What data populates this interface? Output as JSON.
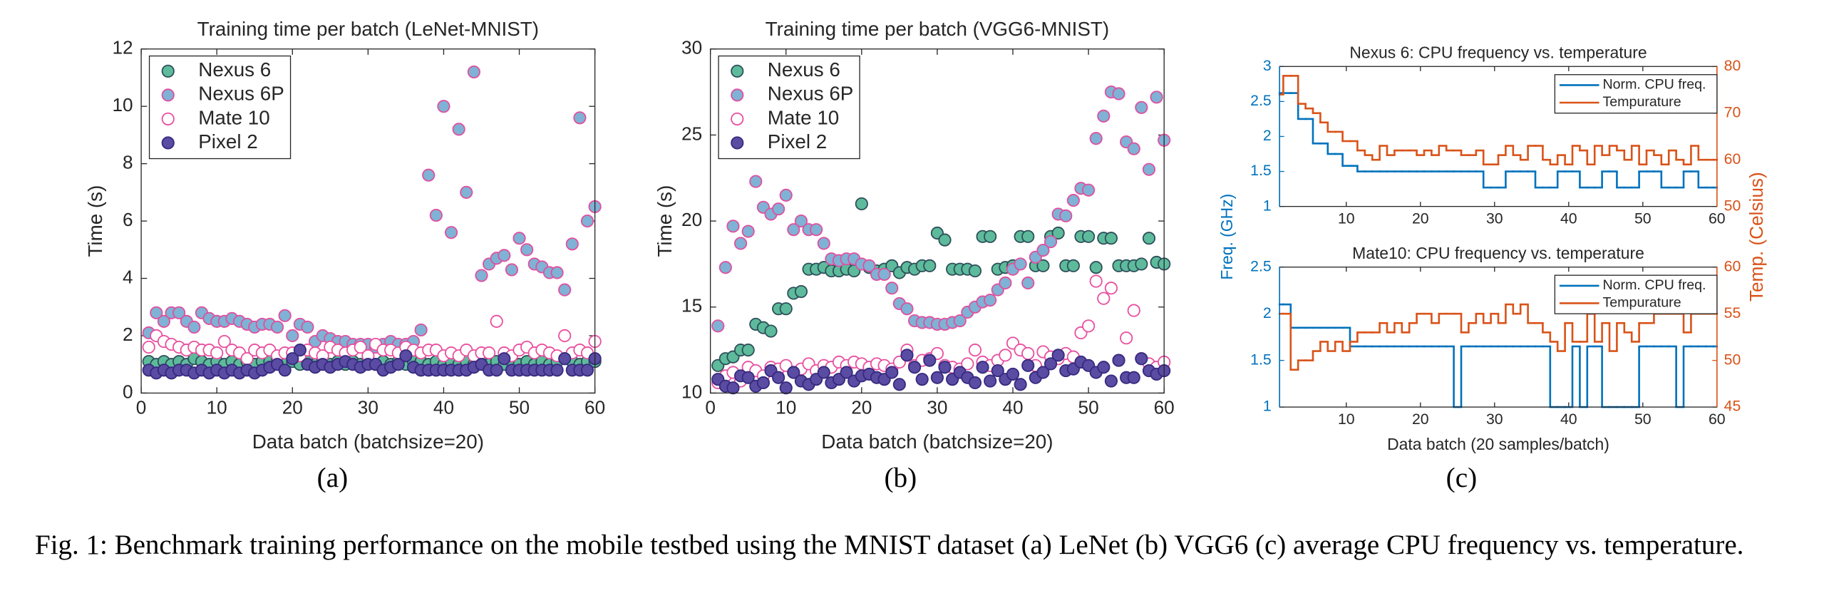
{
  "caption": "Fig. 1: Benchmark training performance on the mobile testbed using the MNIST dataset (a) LeNet (b) VGG6 (c) average CPU frequency vs. temperature.",
  "chart_data": [
    {
      "type": "scatter",
      "title": "Training time per batch (LeNet-MNIST)",
      "xlabel": "Data batch (batchsize=20)",
      "ylabel": "Time (s)",
      "panel": "(a)",
      "legend": "upper left",
      "xlim": [
        0,
        60
      ],
      "xticks": [
        0,
        10,
        20,
        30,
        40,
        50,
        60
      ],
      "ylim": [
        0,
        12
      ],
      "yticks": [
        0,
        2,
        4,
        6,
        8,
        10,
        12
      ],
      "x": [
        1,
        2,
        3,
        4,
        5,
        6,
        7,
        8,
        9,
        10,
        11,
        12,
        13,
        14,
        15,
        16,
        17,
        18,
        19,
        20,
        21,
        22,
        23,
        24,
        25,
        26,
        27,
        28,
        29,
        30,
        31,
        32,
        33,
        34,
        35,
        36,
        37,
        38,
        39,
        40,
        41,
        42,
        43,
        44,
        45,
        46,
        47,
        48,
        49,
        50,
        51,
        52,
        53,
        54,
        55,
        56,
        57,
        58,
        59,
        60
      ],
      "series": [
        {
          "name": "Nexus 6",
          "color": "#5dbb9c",
          "edgecolor": "#2f4f5a",
          "values": [
            1.1,
            1.0,
            1.1,
            1.0,
            1.1,
            1.0,
            1.2,
            1.1,
            1.0,
            1.1,
            1.0,
            1.1,
            1.0,
            1.1,
            1.0,
            1.1,
            1.1,
            1.2,
            1.0,
            1.1,
            1.0,
            1.1,
            1.0,
            1.1,
            1.0,
            1.1,
            1.0,
            1.1,
            1.0,
            1.1,
            1.0,
            1.1,
            1.0,
            1.1,
            1.0,
            1.1,
            1.1,
            1.0,
            1.1,
            1.0,
            1.1,
            1.0,
            1.1,
            1.0,
            1.1,
            1.0,
            1.1,
            1.0,
            1.1,
            1.0,
            1.1,
            1.0,
            1.1,
            1.0,
            1.1,
            1.2,
            1.1,
            1.0,
            1.1,
            1.1
          ]
        },
        {
          "name": "Nexus 6P",
          "color": "#7fb2d4",
          "edgecolor": "#e0509f",
          "values": [
            2.1,
            2.8,
            2.5,
            2.8,
            2.8,
            2.5,
            2.3,
            2.8,
            2.6,
            2.5,
            2.5,
            2.6,
            2.5,
            2.4,
            2.3,
            2.4,
            2.4,
            2.3,
            2.7,
            2.0,
            2.4,
            2.3,
            1.8,
            2.0,
            1.9,
            1.8,
            1.8,
            1.7,
            1.7,
            1.7,
            1.6,
            1.7,
            1.8,
            1.7,
            1.7,
            1.8,
            2.2,
            7.6,
            6.2,
            10.0,
            5.6,
            9.2,
            7.0,
            11.2,
            4.1,
            4.5,
            4.7,
            4.8,
            4.3,
            5.4,
            5.0,
            4.5,
            4.4,
            4.2,
            4.2,
            3.6,
            5.2,
            9.6,
            6.0,
            6.5
          ]
        },
        {
          "name": "Mate 10",
          "color": "#ffffff",
          "edgecolor": "#e94fa0",
          "values": [
            1.6,
            2.0,
            1.8,
            1.7,
            1.6,
            1.5,
            1.6,
            1.5,
            1.5,
            1.4,
            1.8,
            1.5,
            1.4,
            1.2,
            1.5,
            1.4,
            1.5,
            1.3,
            1.4,
            1.4,
            1.3,
            1.5,
            1.4,
            1.3,
            1.6,
            1.5,
            1.4,
            1.5,
            1.6,
            1.3,
            1.7,
            1.5,
            1.5,
            1.4,
            1.6,
            1.5,
            1.4,
            1.5,
            1.5,
            1.3,
            1.4,
            1.3,
            1.5,
            1.3,
            1.4,
            1.4,
            2.5,
            1.4,
            1.3,
            1.5,
            1.6,
            1.4,
            1.5,
            1.4,
            1.3,
            2.0,
            1.4,
            1.5,
            1.4,
            1.8
          ]
        },
        {
          "name": "Pixel 2",
          "color": "#5a4ba3",
          "edgecolor": "#362a7e",
          "values": [
            0.8,
            0.7,
            0.8,
            0.7,
            0.8,
            0.8,
            0.7,
            0.8,
            0.7,
            0.8,
            0.7,
            0.8,
            0.7,
            0.8,
            0.7,
            0.8,
            0.9,
            1.0,
            0.8,
            1.2,
            1.5,
            1.0,
            0.9,
            1.0,
            0.9,
            1.0,
            1.1,
            1.0,
            0.9,
            1.0,
            1.0,
            0.8,
            0.9,
            1.0,
            1.3,
            0.9,
            0.8,
            0.8,
            0.8,
            0.8,
            0.8,
            0.8,
            0.8,
            0.9,
            1.0,
            0.8,
            0.8,
            1.2,
            0.8,
            0.8,
            0.8,
            0.8,
            0.8,
            0.8,
            0.8,
            1.2,
            0.8,
            0.8,
            0.8,
            1.2
          ]
        }
      ]
    },
    {
      "type": "scatter",
      "title": "Training time per batch (VGG6-MNIST)",
      "xlabel": "Data batch (batchsize=20)",
      "ylabel": "Time (s)",
      "panel": "(b)",
      "legend": "upper left",
      "xlim": [
        0,
        60
      ],
      "xticks": [
        0,
        10,
        20,
        30,
        40,
        50,
        60
      ],
      "ylim": [
        10,
        30
      ],
      "yticks": [
        10,
        15,
        20,
        25,
        30
      ],
      "x": [
        1,
        2,
        3,
        4,
        5,
        6,
        7,
        8,
        9,
        10,
        11,
        12,
        13,
        14,
        15,
        16,
        17,
        18,
        19,
        20,
        21,
        22,
        23,
        24,
        25,
        26,
        27,
        28,
        29,
        30,
        31,
        32,
        33,
        34,
        35,
        36,
        37,
        38,
        39,
        40,
        41,
        42,
        43,
        44,
        45,
        46,
        47,
        48,
        49,
        50,
        51,
        52,
        53,
        54,
        55,
        56,
        57,
        58,
        59,
        60
      ],
      "series": [
        {
          "name": "Nexus 6",
          "color": "#5dbb9c",
          "edgecolor": "#2f4f5a",
          "values": [
            11.6,
            12.0,
            12.1,
            12.5,
            12.5,
            14.0,
            13.8,
            13.6,
            14.9,
            14.9,
            15.8,
            15.9,
            17.2,
            17.2,
            17.3,
            17.1,
            17.1,
            17.2,
            17.1,
            21.0,
            17.3,
            17.1,
            17.2,
            17.4,
            17.0,
            17.3,
            17.2,
            17.4,
            17.4,
            19.3,
            18.9,
            17.2,
            17.2,
            17.2,
            17.1,
            19.1,
            19.1,
            17.2,
            17.3,
            17.4,
            19.1,
            19.1,
            17.4,
            17.4,
            19.1,
            19.3,
            17.4,
            17.4,
            19.1,
            19.1,
            17.3,
            19.0,
            19.0,
            17.4,
            17.4,
            17.4,
            17.5,
            19.0,
            17.6,
            17.5
          ]
        },
        {
          "name": "Nexus 6P",
          "color": "#7fb2d4",
          "edgecolor": "#e0509f",
          "values": [
            13.9,
            17.3,
            19.7,
            18.7,
            19.4,
            22.3,
            20.8,
            20.4,
            20.7,
            21.5,
            19.5,
            20.0,
            19.5,
            19.5,
            18.7,
            17.8,
            17.7,
            17.8,
            17.8,
            17.5,
            17.4,
            16.9,
            16.9,
            16.1,
            15.2,
            14.9,
            14.2,
            14.1,
            14.1,
            14.0,
            14.0,
            14.1,
            14.2,
            14.7,
            15.0,
            15.3,
            15.4,
            16.0,
            16.4,
            17.2,
            17.5,
            16.4,
            17.9,
            18.3,
            18.8,
            20.4,
            20.3,
            21.2,
            21.9,
            21.8,
            24.8,
            26.1,
            27.5,
            27.4,
            24.6,
            24.2,
            26.6,
            23.0,
            27.2,
            24.7
          ]
        },
        {
          "name": "Mate 10",
          "color": "#ffffff",
          "edgecolor": "#e94fa0",
          "values": [
            10.6,
            11.0,
            11.2,
            10.7,
            11.5,
            11.3,
            11.0,
            11.5,
            11.4,
            11.6,
            11.2,
            11.4,
            11.7,
            11.3,
            11.6,
            11.5,
            11.8,
            11.6,
            11.8,
            11.7,
            11.5,
            11.7,
            11.6,
            11.4,
            11.8,
            12.5,
            11.6,
            11.9,
            12.0,
            12.3,
            11.6,
            11.5,
            11.4,
            11.7,
            12.5,
            11.8,
            11.6,
            11.9,
            12.2,
            12.9,
            12.5,
            12.3,
            11.6,
            12.4,
            12.1,
            12.0,
            12.3,
            12.1,
            13.5,
            13.9,
            16.5,
            15.5,
            16.1,
            11.9,
            13.2,
            14.8,
            12.0,
            11.7,
            11.5,
            11.8
          ]
        },
        {
          "name": "Pixel 2",
          "color": "#5a4ba3",
          "edgecolor": "#362a7e",
          "values": [
            10.8,
            10.4,
            10.3,
            11.0,
            10.9,
            10.4,
            10.6,
            11.3,
            10.9,
            10.3,
            11.2,
            10.7,
            10.5,
            10.8,
            11.2,
            10.6,
            10.8,
            11.2,
            10.7,
            11.0,
            11.1,
            10.9,
            10.8,
            11.2,
            10.5,
            12.2,
            11.5,
            10.8,
            11.9,
            10.9,
            11.5,
            10.8,
            11.2,
            10.9,
            10.6,
            11.5,
            10.7,
            11.3,
            10.8,
            11.1,
            10.5,
            11.6,
            10.9,
            11.2,
            11.7,
            12.2,
            11.3,
            11.4,
            11.8,
            11.6,
            11.2,
            11.5,
            10.7,
            11.9,
            10.9,
            10.9,
            12.0,
            11.3,
            11.1,
            11.3
          ]
        }
      ]
    },
    {
      "type": "step",
      "title": "Nexus 6: CPU frequency vs. temperature",
      "ylabel": "Freq. (GHz)",
      "y2label": "Temp. (Celsius)",
      "legend": "upper right",
      "xlim": [
        1,
        60
      ],
      "xticks": [
        10,
        20,
        30,
        40,
        50,
        60
      ],
      "ylim": [
        1,
        3
      ],
      "yticks": [
        1,
        1.5,
        2,
        2.5,
        3
      ],
      "y2lim": [
        50,
        80
      ],
      "y2ticks": [
        50,
        60,
        70,
        80
      ],
      "x": [
        1,
        2,
        3,
        4,
        5,
        6,
        7,
        8,
        9,
        10,
        11,
        12,
        13,
        14,
        15,
        16,
        17,
        18,
        19,
        20,
        21,
        22,
        23,
        24,
        25,
        26,
        27,
        28,
        29,
        30,
        31,
        32,
        33,
        34,
        35,
        36,
        37,
        38,
        39,
        40,
        41,
        42,
        43,
        44,
        45,
        46,
        47,
        48,
        49,
        50,
        51,
        52,
        53,
        54,
        55,
        56,
        57,
        58,
        59,
        60
      ],
      "series": [
        {
          "name": "Norm. CPU freq.",
          "color": "#0072bd",
          "values": [
            2.62,
            2.62,
            2.62,
            2.25,
            2.25,
            1.9,
            1.9,
            1.75,
            1.75,
            1.58,
            1.58,
            1.5,
            1.5,
            1.5,
            1.5,
            1.5,
            1.5,
            1.5,
            1.5,
            1.5,
            1.5,
            1.5,
            1.5,
            1.5,
            1.5,
            1.5,
            1.5,
            1.5,
            1.27,
            1.27,
            1.27,
            1.5,
            1.5,
            1.5,
            1.5,
            1.27,
            1.27,
            1.27,
            1.5,
            1.5,
            1.5,
            1.27,
            1.27,
            1.27,
            1.5,
            1.5,
            1.27,
            1.27,
            1.27,
            1.5,
            1.5,
            1.5,
            1.27,
            1.27,
            1.27,
            1.5,
            1.5,
            1.27,
            1.27,
            1.27
          ]
        },
        {
          "name": "Tempurature",
          "color": "#d95319",
          "axis": "y2",
          "values": [
            74,
            78,
            78,
            72,
            71,
            70,
            68,
            66,
            66,
            64,
            64,
            62,
            61,
            60,
            63,
            61,
            62,
            62,
            62,
            61,
            62,
            61,
            63,
            62,
            62,
            61,
            61,
            62,
            59,
            59,
            61,
            63,
            61,
            60,
            63,
            63,
            60,
            59,
            61,
            59,
            63,
            62,
            59,
            63,
            61,
            63,
            62,
            60,
            63,
            59,
            62,
            61,
            59,
            62,
            60,
            59,
            63,
            60,
            60,
            60
          ]
        }
      ]
    },
    {
      "type": "step",
      "title": "Mate10: CPU frequency vs. temperature",
      "xlabel": "Data batch (20 samples/batch)",
      "panel": "(c)",
      "legend": "upper right",
      "xlim": [
        1,
        60
      ],
      "xticks": [
        10,
        20,
        30,
        40,
        50,
        60
      ],
      "ylim": [
        1,
        2.5
      ],
      "yticks": [
        1,
        1.5,
        2,
        2.5
      ],
      "y2lim": [
        45,
        60
      ],
      "y2ticks": [
        45,
        50,
        55,
        60
      ],
      "x": [
        1,
        2,
        3,
        4,
        5,
        6,
        7,
        8,
        9,
        10,
        11,
        12,
        13,
        14,
        15,
        16,
        17,
        18,
        19,
        20,
        21,
        22,
        23,
        24,
        25,
        26,
        27,
        28,
        29,
        30,
        31,
        32,
        33,
        34,
        35,
        36,
        37,
        38,
        39,
        40,
        41,
        42,
        43,
        44,
        45,
        46,
        47,
        48,
        49,
        50,
        51,
        52,
        53,
        54,
        55,
        56,
        57,
        58,
        59,
        60
      ],
      "series": [
        {
          "name": "Norm. CPU freq.",
          "color": "#0072bd",
          "values": [
            2.1,
            2.1,
            1.85,
            1.85,
            1.85,
            1.85,
            1.85,
            1.85,
            1.85,
            1.85,
            1.65,
            1.65,
            1.65,
            1.65,
            1.65,
            1.65,
            1.65,
            1.65,
            1.65,
            1.65,
            1.65,
            1.65,
            1.65,
            1.65,
            1.0,
            1.65,
            1.65,
            1.65,
            1.65,
            1.65,
            1.65,
            1.65,
            1.65,
            1.65,
            1.65,
            1.65,
            1.65,
            1.0,
            1.0,
            1.0,
            1.65,
            1.0,
            1.65,
            1.65,
            1.0,
            1.0,
            1.0,
            1.0,
            1.0,
            1.65,
            1.65,
            1.65,
            1.65,
            1.65,
            1.0,
            1.65,
            1.65,
            1.65,
            1.65,
            1.65
          ]
        },
        {
          "name": "Tempurature",
          "color": "#d95319",
          "axis": "y2",
          "values": [
            55,
            55,
            49,
            50,
            50,
            51,
            52,
            51,
            52,
            51,
            52,
            53,
            53,
            53,
            54,
            53,
            54,
            53,
            54,
            55,
            55,
            54,
            55,
            55,
            55,
            53,
            54,
            55,
            54,
            55,
            54,
            56,
            55,
            56,
            54,
            54,
            53,
            52,
            51,
            54,
            52,
            52,
            55,
            52,
            54,
            51,
            54,
            53,
            52,
            54,
            54,
            55,
            55,
            55,
            55,
            53,
            55,
            55,
            55,
            55
          ]
        }
      ]
    }
  ]
}
